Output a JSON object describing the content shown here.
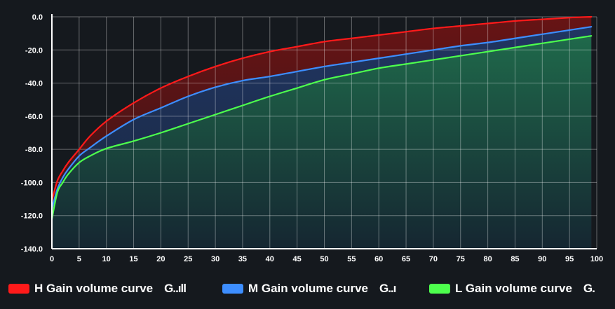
{
  "chart_data": {
    "type": "area",
    "x": [
      0,
      1,
      2,
      3,
      5,
      7,
      10,
      15,
      20,
      25,
      30,
      35,
      40,
      45,
      50,
      55,
      60,
      65,
      70,
      75,
      80,
      85,
      90,
      95,
      99
    ],
    "xticks": [
      0,
      5,
      10,
      15,
      20,
      25,
      30,
      35,
      40,
      45,
      50,
      55,
      60,
      65,
      70,
      75,
      80,
      85,
      90,
      95,
      100
    ],
    "yticks": [
      "0.0",
      "-20.0",
      "-40.0",
      "-60.0",
      "-80.0",
      "-100.0",
      "-120.0",
      "-140.0"
    ],
    "xlim": [
      0,
      100
    ],
    "ylim": [
      -140,
      0
    ],
    "grid": true,
    "legend_position": "bottom",
    "series": [
      {
        "name": "H Gain volume curve",
        "glyph": "G..ıll",
        "color": "#ff1a1a",
        "values": [
          -111,
          -99,
          -93,
          -88,
          -80,
          -72,
          -63,
          -52,
          -43,
          -36,
          -30,
          -25,
          -21,
          -18,
          -15,
          -13,
          -11,
          -9,
          -7,
          -5.5,
          -4,
          -2.5,
          -1.5,
          -0.5,
          0
        ]
      },
      {
        "name": "M Gain volume curve",
        "glyph": "G..ı",
        "color": "#3d8eff",
        "values": [
          -116,
          -104,
          -97,
          -92,
          -84,
          -79,
          -72,
          -62,
          -55,
          -48,
          -42.5,
          -38.5,
          -36,
          -33,
          -30,
          -27.5,
          -25,
          -22.5,
          -20,
          -17.5,
          -15.5,
          -13,
          -10.5,
          -8,
          -6
        ]
      },
      {
        "name": "L Gain volume curve",
        "glyph": "G.",
        "color": "#4dff4d",
        "values": [
          -122,
          -106,
          -100,
          -95,
          -88,
          -84,
          -79.5,
          -75,
          -70,
          -64.5,
          -59,
          -53.5,
          -48,
          -43,
          -38,
          -34.5,
          -31,
          -28.5,
          -26,
          -23.5,
          -21,
          -18.5,
          -16,
          -13.5,
          -11.5
        ]
      }
    ]
  }
}
